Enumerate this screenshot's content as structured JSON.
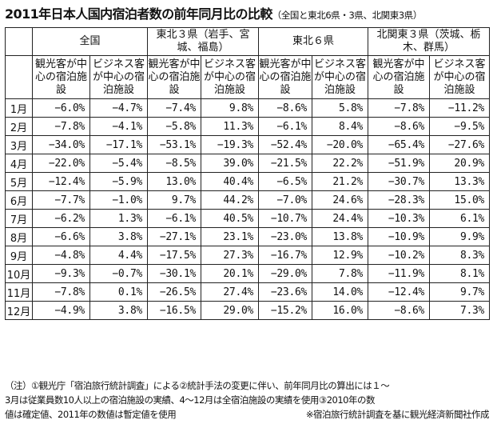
{
  "title": {
    "main": "2011年日本人国内宿泊者数の前年同月比の比較",
    "sub": "（全国と東北6県・3県、北関東3県）"
  },
  "groups": [
    "全国",
    "東北３県（岩手、宮城、福島）",
    "東北６県",
    "北関東３県（茨城、栃木、群馬）"
  ],
  "subheaders": {
    "tourism": "観光客が中心の宿泊施設",
    "business": "ビジネス客が中心の宿泊施設"
  },
  "rows": [
    {
      "month": "1月",
      "values": [
        "−6.0%",
        "−4.7%",
        "−7.4%",
        "9.8%",
        "−8.6%",
        "5.8%",
        "−7.8%",
        "−11.2%"
      ]
    },
    {
      "month": "2月",
      "values": [
        "−7.8%",
        "−4.1%",
        "−5.8%",
        "11.3%",
        "−6.1%",
        "8.4%",
        "−8.6%",
        "−9.5%"
      ]
    },
    {
      "month": "3月",
      "values": [
        "−34.0%",
        "−17.1%",
        "−53.1%",
        "−19.3%",
        "−52.4%",
        "−20.0%",
        "−65.4%",
        "−27.6%"
      ]
    },
    {
      "month": "4月",
      "values": [
        "−22.0%",
        "−5.4%",
        "−8.5%",
        "39.0%",
        "−21.5%",
        "22.2%",
        "−51.9%",
        "20.9%"
      ]
    },
    {
      "month": "5月",
      "values": [
        "−12.4%",
        "−5.9%",
        "13.0%",
        "40.4%",
        "−6.5%",
        "21.2%",
        "−30.7%",
        "13.3%"
      ]
    },
    {
      "month": "6月",
      "values": [
        "−7.7%",
        "−1.0%",
        "9.7%",
        "44.2%",
        "−7.0%",
        "24.6%",
        "−28.3%",
        "15.0%"
      ]
    },
    {
      "month": "7月",
      "values": [
        "−6.2%",
        "1.3%",
        "−6.1%",
        "40.5%",
        "−10.7%",
        "24.4%",
        "−10.3%",
        "6.1%"
      ]
    },
    {
      "month": "8月",
      "values": [
        "−6.6%",
        "3.8%",
        "−27.1%",
        "23.1%",
        "−23.0%",
        "13.8%",
        "−10.9%",
        "9.9%"
      ]
    },
    {
      "month": "9月",
      "values": [
        "−4.8%",
        "4.4%",
        "−17.5%",
        "27.3%",
        "−16.7%",
        "12.9%",
        "−10.2%",
        "8.3%"
      ]
    },
    {
      "month": "10月",
      "values": [
        "−9.3%",
        "−0.7%",
        "−30.1%",
        "20.1%",
        "−29.0%",
        "7.8%",
        "−11.9%",
        "8.1%"
      ]
    },
    {
      "month": "11月",
      "values": [
        "−7.8%",
        "0.1%",
        "−26.5%",
        "27.4%",
        "−23.6%",
        "14.0%",
        "−12.4%",
        "9.7%"
      ]
    },
    {
      "month": "12月",
      "values": [
        "−4.9%",
        "3.8%",
        "−16.5%",
        "29.0%",
        "−15.2%",
        "16.0%",
        "−8.6%",
        "7.3%"
      ]
    }
  ],
  "notes": {
    "line1": "（注）①観光庁「宿泊旅行統計調査」による②統計手法の変更に伴い、前年同月比の算出には１～",
    "line2": "3月は従業員数10人以上の宿泊施設の実績、4～12月は全宿泊施設の実績を使用③2010年の数",
    "line3": "値は確定値、2011年の数値は暫定値を使用",
    "credit": "※宿泊旅行統計調査を基に観光経済新聞社作成"
  }
}
